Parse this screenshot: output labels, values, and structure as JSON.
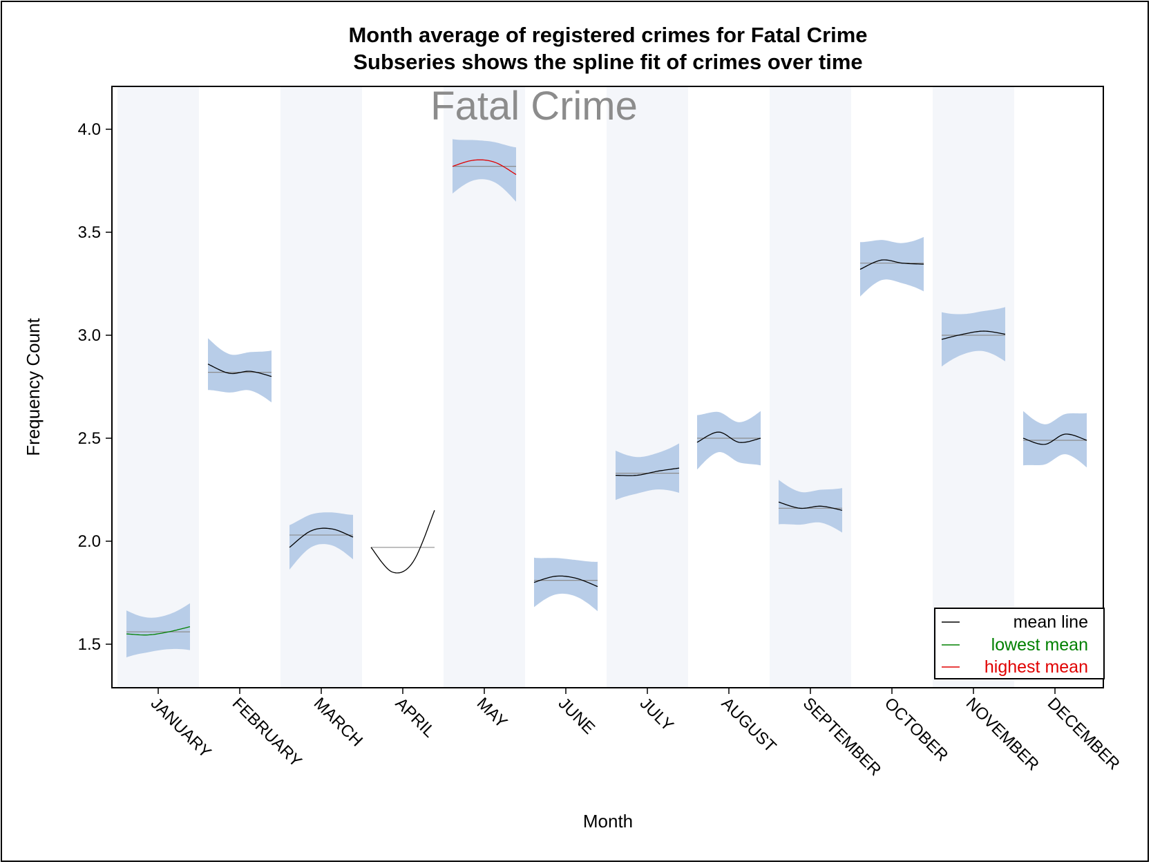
{
  "chart_data": {
    "type": "line",
    "title": "Month average of registered crimes for Fatal Crime",
    "subtitle": "Subseries shows the spline fit of crimes over time",
    "inset_label": "Fatal Crime",
    "xlabel": "Month",
    "ylabel": "Frequency Count",
    "ylim": [
      1.3,
      4.2
    ],
    "yticks": [
      1.5,
      2.0,
      2.5,
      3.0,
      3.5,
      4.0
    ],
    "ytick_labels": [
      "1.5",
      "2.0",
      "2.5",
      "3.0",
      "3.5",
      "4.0"
    ],
    "grid": false,
    "legend_position": "bottom-right",
    "categories": [
      "JANUARY",
      "FEBRUARY",
      "MARCH",
      "APRIL",
      "MAY",
      "JUNE",
      "JULY",
      "AUGUST",
      "SEPTEMBER",
      "OCTOBER",
      "NOVEMBER",
      "DECEMBER"
    ],
    "series": [
      {
        "name": "mean line",
        "values": [
          1.56,
          2.82,
          2.03,
          1.97,
          3.82,
          1.81,
          2.33,
          2.5,
          2.16,
          3.35,
          3.0,
          2.49
        ]
      }
    ],
    "spline_fits": [
      [
        1.55,
        1.545,
        1.56,
        1.585
      ],
      [
        2.86,
        2.815,
        2.825,
        2.8
      ],
      [
        1.97,
        2.05,
        2.06,
        2.02
      ],
      [
        1.97,
        1.85,
        1.9,
        2.15
      ],
      [
        3.82,
        3.85,
        3.84,
        3.78
      ],
      [
        1.8,
        1.83,
        1.82,
        1.78
      ],
      [
        2.32,
        2.32,
        2.34,
        2.355
      ],
      [
        2.48,
        2.53,
        2.48,
        2.5
      ],
      [
        2.19,
        2.16,
        2.17,
        2.15
      ],
      [
        3.32,
        3.365,
        3.35,
        3.345
      ],
      [
        2.98,
        3.005,
        3.02,
        3.005
      ],
      [
        2.5,
        2.47,
        2.52,
        2.49
      ]
    ],
    "band_halfwidth": [
      0.095,
      0.105,
      0.09,
      0,
      0.11,
      0.1,
      0.1,
      0.11,
      0.09,
      0.11,
      0.11,
      0.11
    ],
    "highlights": {
      "lowest": 0,
      "highest": 4
    },
    "legend": [
      {
        "label": "mean line",
        "color": "#000000"
      },
      {
        "label": "lowest mean",
        "color": "#008000"
      },
      {
        "label": "highest mean",
        "color": "#e00000"
      }
    ],
    "colors": {
      "band": "#b8cde8",
      "stripe": "#f4f6fa",
      "mean_line": "#8c8c8c",
      "fit_line": "#000000",
      "lowest": "#008000",
      "highest": "#e00000"
    }
  }
}
